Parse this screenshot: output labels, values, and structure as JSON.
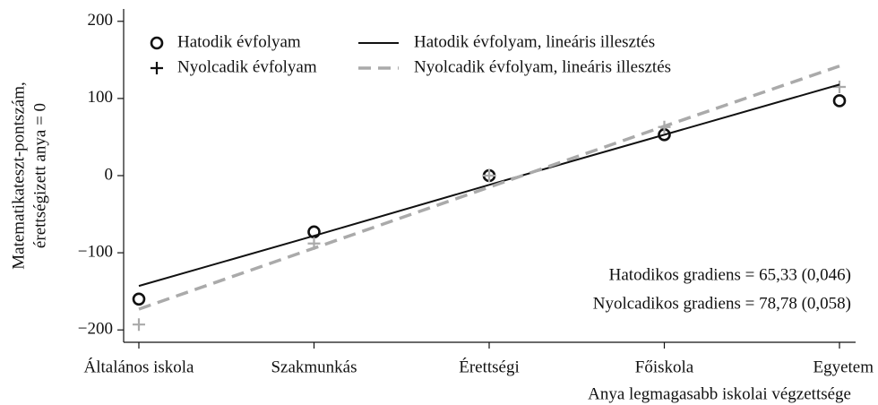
{
  "chart_data": {
    "type": "line",
    "categories": [
      "Általános iskola",
      "Szakmunkás",
      "Érettségi",
      "Főiskola",
      "Egyetem"
    ],
    "series": [
      {
        "name": "Hatodik évfolyam",
        "color": "#111111",
        "marker": "circle",
        "line": false,
        "values": [
          -160,
          -73,
          0,
          53,
          97
        ]
      },
      {
        "name": "Nyolcadik évfolyam",
        "color": "#aaaaaa",
        "marker": "plus",
        "line": false,
        "values": [
          -193,
          -88,
          0,
          63,
          115
        ]
      },
      {
        "name": "Hatodik évfolyam, lineáris illesztés",
        "color": "#111111",
        "marker": "none",
        "line": true,
        "dash": false,
        "values": [
          -143,
          -78,
          -12,
          53,
          118
        ]
      },
      {
        "name": "Nyolcadik évfolyam, lineáris illesztés",
        "color": "#aaaaaa",
        "marker": "none",
        "line": true,
        "dash": true,
        "values": [
          -173,
          -94,
          -15,
          64,
          142
        ]
      }
    ],
    "ylabel": [
      "Matematikateszt-pontszám,",
      "érettségizett anya = 0"
    ],
    "xlabel": "Anya legmagasabb iskolai végzettsége",
    "annotations": [
      "Hatodikos gradiens = 65,33 (0,046)",
      "Nyolcadikos gradiens = 78,78 (0,058)"
    ],
    "ylim": [
      -216,
      216
    ],
    "yticks": [
      200,
      100,
      0,
      {
        "value": -100,
        "label": "−100"
      },
      {
        "value": -200,
        "label": "−200"
      }
    ],
    "grid": false,
    "legend": "top-left"
  }
}
